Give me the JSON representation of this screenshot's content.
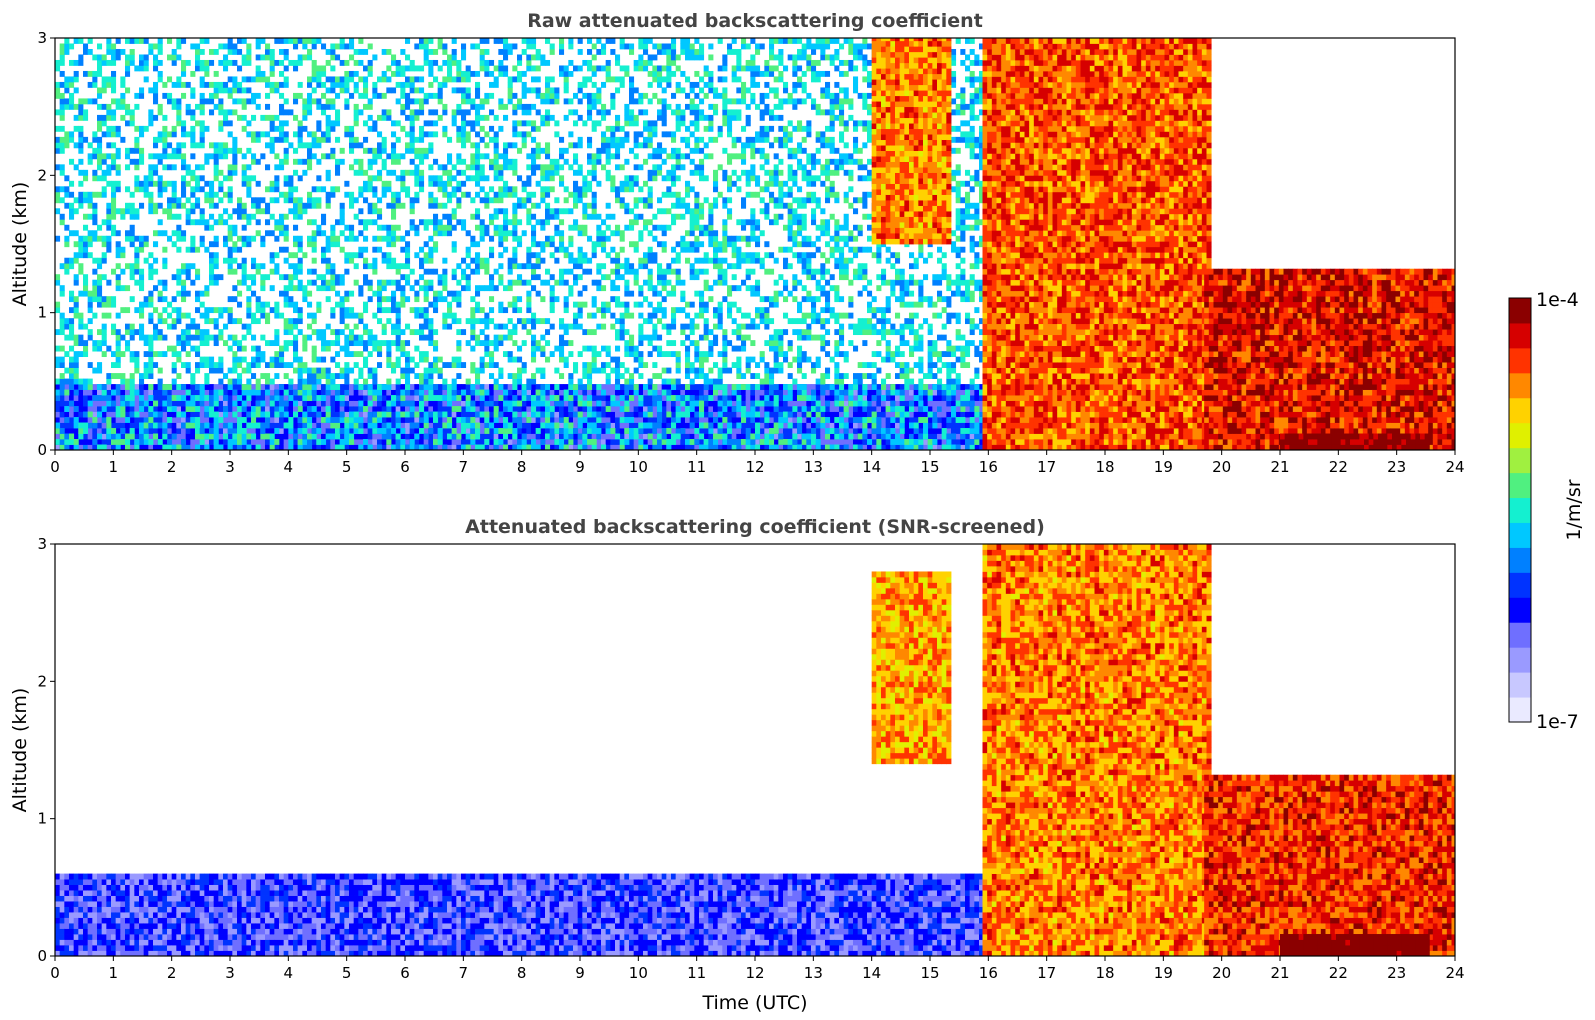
{
  "colorbar": {
    "min_label": "1e-7",
    "max_label": "1e-4",
    "label": "1/m/sr",
    "colors": [
      "#eaeaff",
      "#c8c8ff",
      "#9a9aff",
      "#6f6fff",
      "#0000ff",
      "#0033ff",
      "#0080ff",
      "#00c8ff",
      "#14f0d0",
      "#50f080",
      "#a0f040",
      "#e0f000",
      "#ffd200",
      "#ff8800",
      "#ff3300",
      "#d60000",
      "#8b0000"
    ]
  },
  "chart_data": [
    {
      "type": "heatmap",
      "title": "Raw attenuated backscattering coefficient",
      "xlabel": "",
      "ylabel": "Altitude (km)",
      "x_ticks": [
        "0",
        "1",
        "2",
        "3",
        "4",
        "5",
        "6",
        "7",
        "8",
        "9",
        "10",
        "11",
        "12",
        "13",
        "14",
        "15",
        "16",
        "17",
        "18",
        "19",
        "20",
        "21",
        "22",
        "23",
        "24"
      ],
      "y_ticks": [
        "0",
        "1",
        "2",
        "3"
      ],
      "xlim": [
        0,
        24
      ],
      "ylim": [
        0,
        3
      ],
      "x_unit": "hours UTC",
      "y_unit": "km",
      "value_scale": "log10 1/m/sr",
      "features": [
        {
          "name": "boundary layer aerosol",
          "t_start": 0,
          "t_end": 17.3,
          "alt_top_km": 0.45,
          "log_value": -6.2
        },
        {
          "name": "sparse noise aloft",
          "t_start": 0,
          "t_end": 17.3,
          "alt_top_km": 3.0,
          "log_value": -5.6
        },
        {
          "name": "cloud 14-15.3h",
          "t_start": 14.0,
          "t_end": 15.3,
          "alt_bottom_km": 1.5,
          "alt_top_km": 3.0,
          "log_value": -4.6
        },
        {
          "name": "falling cloud streaks 16-19.8h",
          "t_start": 15.9,
          "t_end": 19.8,
          "alt_bottom_km": 0.0,
          "alt_top_km": 3.0,
          "log_value": -4.5
        },
        {
          "name": "low cloud 19.7-24h",
          "t_start": 19.7,
          "t_end": 24.0,
          "alt_bottom_km": 0.0,
          "alt_top_km": 1.3,
          "log_value": -4.3
        },
        {
          "name": "dense base 21-23.5h",
          "t_start": 21.0,
          "t_end": 23.5,
          "alt_bottom_km": 0.0,
          "alt_top_km": 0.12,
          "log_value": -4.0
        }
      ]
    },
    {
      "type": "heatmap",
      "title": "Attenuated backscattering coefficient (SNR-screened)",
      "xlabel": "Time (UTC)",
      "ylabel": "Altitude (km)",
      "x_ticks": [
        "0",
        "1",
        "2",
        "3",
        "4",
        "5",
        "6",
        "7",
        "8",
        "9",
        "10",
        "11",
        "12",
        "13",
        "14",
        "15",
        "16",
        "17",
        "18",
        "19",
        "20",
        "21",
        "22",
        "23",
        "24"
      ],
      "y_ticks": [
        "0",
        "1",
        "2",
        "3"
      ],
      "xlim": [
        0,
        24
      ],
      "ylim": [
        0,
        3
      ],
      "x_unit": "hours UTC",
      "y_unit": "km",
      "value_scale": "log10 1/m/sr",
      "features": [
        {
          "name": "boundary layer aerosol",
          "t_start": 0,
          "t_end": 17.3,
          "alt_top_km": 0.6,
          "log_value": -6.3
        },
        {
          "name": "cloud 14-15.3h",
          "t_start": 14.0,
          "t_end": 15.3,
          "alt_bottom_km": 1.4,
          "alt_top_km": 2.8,
          "log_value": -4.7
        },
        {
          "name": "falling cloud streaks 16-19.8h",
          "t_start": 15.9,
          "t_end": 19.8,
          "alt_bottom_km": 0.0,
          "alt_top_km": 3.0,
          "log_value": -4.6
        },
        {
          "name": "low cloud 19.7-24h",
          "t_start": 19.7,
          "t_end": 24.0,
          "alt_bottom_km": 0.0,
          "alt_top_km": 1.3,
          "log_value": -4.4
        },
        {
          "name": "saturated base 21-23.5h",
          "t_start": 21.0,
          "t_end": 23.5,
          "alt_bottom_km": 0.0,
          "alt_top_km": 0.15,
          "log_value": -3.9
        }
      ]
    }
  ]
}
